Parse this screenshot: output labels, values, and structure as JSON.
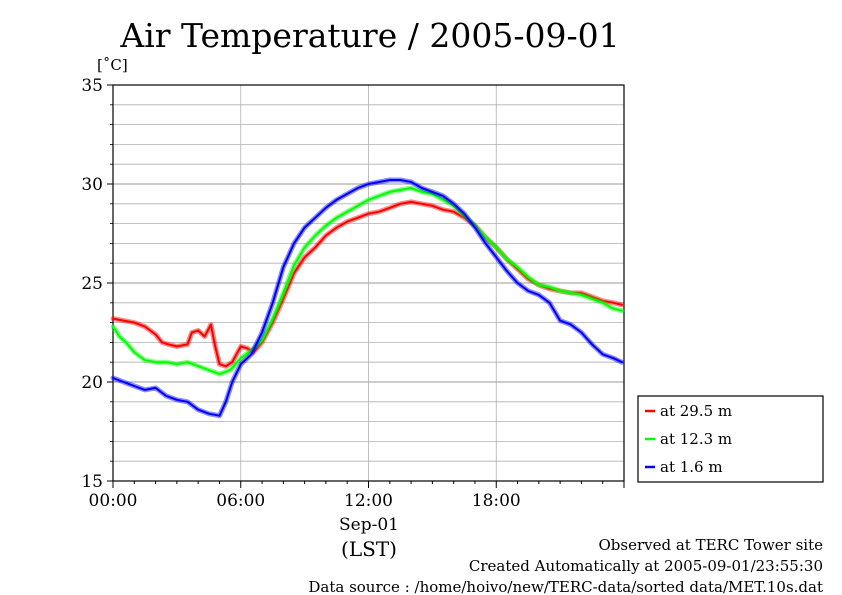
{
  "chart_data": {
    "type": "line",
    "title": "Air Temperature / 2005-09-01",
    "y_unit": "[˚C]",
    "x_tick_labels": [
      "00:00",
      "06:00",
      "12:00",
      "18:00"
    ],
    "x_ticks_hours": [
      0,
      6,
      12,
      18
    ],
    "x_date_label": "Sep-01",
    "x_zone_label": "(LST)",
    "xlim_hours": [
      0,
      24
    ],
    "ylim": [
      15,
      35
    ],
    "y_tick_labels": [
      "15",
      "20",
      "25",
      "30",
      "35"
    ],
    "y_ticks": [
      15,
      20,
      25,
      30,
      35
    ],
    "y_minor_step": 1,
    "grid": true,
    "legend_position": "right",
    "series": [
      {
        "name": "at 29.5 m",
        "color": "#ff0000",
        "points": [
          [
            0,
            23.2
          ],
          [
            0.5,
            23.1
          ],
          [
            1,
            23.0
          ],
          [
            1.5,
            22.8
          ],
          [
            2,
            22.4
          ],
          [
            2.3,
            22.0
          ],
          [
            2.6,
            21.9
          ],
          [
            3,
            21.8
          ],
          [
            3.5,
            21.9
          ],
          [
            3.7,
            22.5
          ],
          [
            4,
            22.6
          ],
          [
            4.3,
            22.3
          ],
          [
            4.6,
            22.9
          ],
          [
            4.8,
            21.8
          ],
          [
            5,
            20.9
          ],
          [
            5.3,
            20.8
          ],
          [
            5.6,
            21.0
          ],
          [
            6,
            21.8
          ],
          [
            6.3,
            21.7
          ],
          [
            6.6,
            21.5
          ],
          [
            7,
            22.0
          ],
          [
            7.5,
            23.0
          ],
          [
            8,
            24.2
          ],
          [
            8.5,
            25.5
          ],
          [
            9,
            26.3
          ],
          [
            9.5,
            26.8
          ],
          [
            10,
            27.4
          ],
          [
            10.5,
            27.8
          ],
          [
            11,
            28.1
          ],
          [
            11.5,
            28.3
          ],
          [
            12,
            28.5
          ],
          [
            12.5,
            28.6
          ],
          [
            13,
            28.8
          ],
          [
            13.5,
            29.0
          ],
          [
            14,
            29.1
          ],
          [
            14.5,
            29.0
          ],
          [
            15,
            28.9
          ],
          [
            15.5,
            28.7
          ],
          [
            16,
            28.6
          ],
          [
            16.5,
            28.3
          ],
          [
            17,
            27.9
          ],
          [
            17.5,
            27.3
          ],
          [
            18,
            26.8
          ],
          [
            18.5,
            26.2
          ],
          [
            19,
            25.7
          ],
          [
            19.5,
            25.2
          ],
          [
            20,
            24.9
          ],
          [
            20.5,
            24.7
          ],
          [
            21,
            24.6
          ],
          [
            21.5,
            24.5
          ],
          [
            22,
            24.5
          ],
          [
            22.5,
            24.3
          ],
          [
            23,
            24.1
          ],
          [
            23.5,
            24.0
          ],
          [
            23.9,
            23.9
          ]
        ]
      },
      {
        "name": "at 12.3 m",
        "color": "#00ff00",
        "points": [
          [
            0,
            22.8
          ],
          [
            0.3,
            22.3
          ],
          [
            0.6,
            22.0
          ],
          [
            1,
            21.5
          ],
          [
            1.5,
            21.1
          ],
          [
            2,
            21.0
          ],
          [
            2.5,
            21.0
          ],
          [
            3,
            20.9
          ],
          [
            3.5,
            21.0
          ],
          [
            4,
            20.8
          ],
          [
            4.5,
            20.6
          ],
          [
            5,
            20.4
          ],
          [
            5.5,
            20.6
          ],
          [
            6,
            21.2
          ],
          [
            6.5,
            21.6
          ],
          [
            7,
            22.1
          ],
          [
            7.5,
            23.2
          ],
          [
            8,
            24.5
          ],
          [
            8.5,
            25.9
          ],
          [
            9,
            26.8
          ],
          [
            9.5,
            27.4
          ],
          [
            10,
            27.9
          ],
          [
            10.5,
            28.3
          ],
          [
            11,
            28.6
          ],
          [
            11.5,
            28.9
          ],
          [
            12,
            29.2
          ],
          [
            12.5,
            29.4
          ],
          [
            13,
            29.6
          ],
          [
            13.5,
            29.7
          ],
          [
            14,
            29.8
          ],
          [
            14.5,
            29.6
          ],
          [
            15,
            29.5
          ],
          [
            15.5,
            29.2
          ],
          [
            16,
            28.9
          ],
          [
            16.5,
            28.4
          ],
          [
            17,
            27.9
          ],
          [
            17.5,
            27.3
          ],
          [
            18,
            26.8
          ],
          [
            18.5,
            26.2
          ],
          [
            19,
            25.8
          ],
          [
            19.5,
            25.3
          ],
          [
            20,
            24.9
          ],
          [
            20.5,
            24.8
          ],
          [
            21,
            24.6
          ],
          [
            21.5,
            24.5
          ],
          [
            22,
            24.4
          ],
          [
            22.5,
            24.2
          ],
          [
            23,
            24.0
          ],
          [
            23.5,
            23.7
          ],
          [
            23.9,
            23.6
          ]
        ]
      },
      {
        "name": "at 1.6 m",
        "color": "#0000ff",
        "points": [
          [
            0,
            20.2
          ],
          [
            0.5,
            20.0
          ],
          [
            1,
            19.8
          ],
          [
            1.5,
            19.6
          ],
          [
            2,
            19.7
          ],
          [
            2.5,
            19.3
          ],
          [
            3,
            19.1
          ],
          [
            3.5,
            19.0
          ],
          [
            4,
            18.6
          ],
          [
            4.5,
            18.4
          ],
          [
            5,
            18.3
          ],
          [
            5.3,
            19.0
          ],
          [
            5.6,
            20.0
          ],
          [
            6,
            20.9
          ],
          [
            6.5,
            21.4
          ],
          [
            7,
            22.5
          ],
          [
            7.5,
            24.0
          ],
          [
            8,
            25.8
          ],
          [
            8.5,
            27.0
          ],
          [
            9,
            27.8
          ],
          [
            9.5,
            28.3
          ],
          [
            10,
            28.8
          ],
          [
            10.5,
            29.2
          ],
          [
            11,
            29.5
          ],
          [
            11.5,
            29.8
          ],
          [
            12,
            30.0
          ],
          [
            12.5,
            30.1
          ],
          [
            13,
            30.2
          ],
          [
            13.5,
            30.2
          ],
          [
            14,
            30.1
          ],
          [
            14.5,
            29.8
          ],
          [
            15,
            29.6
          ],
          [
            15.5,
            29.4
          ],
          [
            16,
            29.0
          ],
          [
            16.5,
            28.5
          ],
          [
            17,
            27.8
          ],
          [
            17.5,
            27.0
          ],
          [
            18,
            26.3
          ],
          [
            18.5,
            25.6
          ],
          [
            19,
            25.0
          ],
          [
            19.5,
            24.6
          ],
          [
            20,
            24.4
          ],
          [
            20.5,
            24.0
          ],
          [
            21,
            23.1
          ],
          [
            21.5,
            22.9
          ],
          [
            22,
            22.5
          ],
          [
            22.5,
            21.9
          ],
          [
            23,
            21.4
          ],
          [
            23.5,
            21.2
          ],
          [
            23.9,
            21.0
          ]
        ]
      }
    ]
  },
  "footer": {
    "line1": "Observed at TERC Tower site",
    "line2": "Created Automatically at 2005-09-01/23:55:30",
    "line3": "Data source : /home/hoivo/new/TERC-data/sorted  data/MET.10s.dat"
  }
}
